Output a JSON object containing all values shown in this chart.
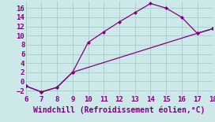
{
  "line1_x": [
    6,
    7,
    8,
    9,
    10,
    11,
    12,
    13,
    14,
    15,
    16,
    17,
    18
  ],
  "line1_y": [
    -1,
    -2.3,
    -1.3,
    2,
    8.5,
    10.8,
    13,
    15,
    17,
    16,
    14,
    10.5,
    11.5
  ],
  "line2_x": [
    6,
    7,
    8,
    9,
    17,
    18
  ],
  "line2_y": [
    -1,
    -2.3,
    -1.3,
    2,
    10.5,
    11.5
  ],
  "line_color": "#800080",
  "bg_color": "#cce8e8",
  "grid_color": "#aacece",
  "xlabel": "Windchill (Refroidissement éolien,°C)",
  "xlim": [
    6,
    18
  ],
  "ylim": [
    -3,
    17.5
  ],
  "xticks": [
    6,
    7,
    8,
    9,
    10,
    11,
    12,
    13,
    14,
    15,
    16,
    17,
    18
  ],
  "yticks": [
    -2,
    0,
    2,
    4,
    6,
    8,
    10,
    12,
    14,
    16
  ],
  "marker": "D",
  "markersize": 2.5,
  "linewidth": 0.9,
  "xlabel_fontsize": 7,
  "tick_fontsize": 6.5,
  "tick_color": "#800080"
}
